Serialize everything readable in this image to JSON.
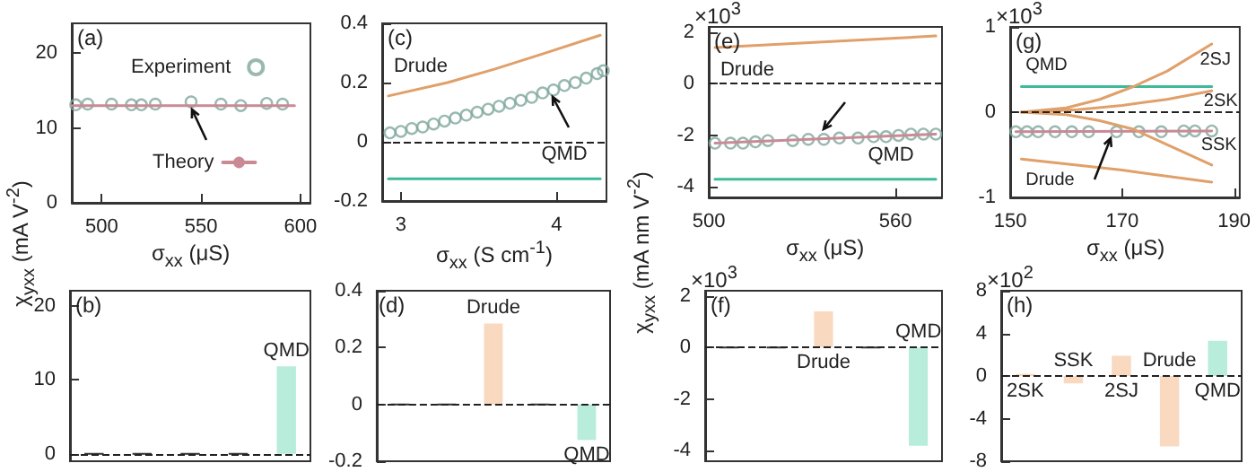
{
  "chart_data": [
    {
      "type": "scatter",
      "ylabel": "χ$_{yxx}$ (mA V$^{-2}$)",
      "xlabel": "σ$_{xx}$ (μS)",
      "annotations": [
        "(a)"
      ],
      "xlim": [
        485,
        605
      ],
      "xticks": [
        500,
        550,
        600
      ],
      "ylim": [
        0,
        24
      ],
      "yticks": [
        0,
        10,
        20
      ],
      "legend": "center",
      "series": [
        {
          "name": "Experiment",
          "type": "scatter",
          "marker": "circle",
          "color": "#7fa89c",
          "x": [
            487,
            493,
            505,
            515,
            520,
            527,
            545,
            560,
            570,
            583,
            591
          ],
          "values": [
            13.1,
            13.2,
            13.2,
            13.1,
            13.1,
            13.2,
            13.5,
            13.2,
            13.0,
            13.3,
            13.2
          ]
        },
        {
          "name": "Theory",
          "type": "line",
          "color": "#c98a96",
          "x": [
            485,
            597
          ],
          "values": [
            13.0,
            13.0
          ]
        }
      ]
    },
    {
      "type": "bar",
      "categories": [
        null,
        null,
        null,
        null,
        "QMD"
      ],
      "values": [
        0,
        0,
        0,
        0,
        11.8
      ],
      "colors": [
        "#333333",
        "#333333",
        "#333333",
        "#333333",
        "#b8ecdb"
      ],
      "annotations": [
        "(b)"
      ],
      "ylim": [
        -1,
        22
      ],
      "yticks": [
        0,
        10,
        20
      ],
      "tick_labels": "y",
      "ref_lines": [
        {
          "axis": "y",
          "value": 0,
          "line_style": "dashed"
        }
      ]
    },
    {
      "type": "scatter",
      "xlabel": "σ$_{xx}$ (S cm$^{-1}$)",
      "annotations": [
        "(c)"
      ],
      "xlim": [
        2.88,
        4.32
      ],
      "xticks": [
        3,
        4
      ],
      "ylim": [
        -0.2,
        0.4
      ],
      "yticks": [
        -0.2,
        0,
        0.2,
        0.4
      ],
      "ref_lines": [
        {
          "axis": "y",
          "value": 0,
          "line_style": "dashed"
        }
      ],
      "series": [
        {
          "type": "scatter",
          "marker": "circle",
          "color": "#7fa89c",
          "x": [
            2.93,
            3.0,
            3.07,
            3.14,
            3.21,
            3.28,
            3.35,
            3.42,
            3.49,
            3.56,
            3.63,
            3.7,
            3.77,
            3.84,
            3.91,
            3.98,
            4.05,
            4.12,
            4.19,
            4.26,
            4.3
          ],
          "values": [
            0.03,
            0.035,
            0.045,
            0.05,
            0.06,
            0.07,
            0.08,
            0.09,
            0.1,
            0.11,
            0.12,
            0.13,
            0.14,
            0.15,
            0.165,
            0.175,
            0.19,
            0.2,
            0.215,
            0.23,
            0.24
          ]
        },
        {
          "name": "Drude",
          "type": "line",
          "color": "#e0a06a",
          "x": [
            2.92,
            3.3,
            3.6,
            3.9,
            4.28
          ],
          "values": [
            0.155,
            0.2,
            0.245,
            0.295,
            0.36
          ]
        },
        {
          "name": "QMD",
          "type": "line",
          "color": "#3fb99a",
          "x": [
            2.92,
            4.28
          ],
          "values": [
            -0.125,
            -0.125
          ]
        }
      ]
    },
    {
      "type": "bar",
      "categories": [
        null,
        null,
        "Drude",
        null,
        "QMD"
      ],
      "values": [
        0,
        0,
        0.285,
        0,
        -0.125
      ],
      "colors": [
        "#333333",
        "#333333",
        "#f9d9bf",
        "#333333",
        "#b8ecdb"
      ],
      "annotations": [
        "(d)"
      ],
      "ylim": [
        -0.2,
        0.4
      ],
      "yticks": [
        -0.2,
        0,
        0.2,
        0.4
      ],
      "tick_labels": "y",
      "ref_lines": [
        {
          "axis": "y",
          "value": 0,
          "line_style": "dashed"
        }
      ]
    },
    {
      "type": "scatter",
      "ylabel": "χ$_{yxx}$ (mA nm V$^{-2}$)",
      "xlabel": "σ$_{xx}$ (μS)",
      "annotations": [
        "(e)",
        "×10$^{3}$"
      ],
      "xlim": [
        500,
        575
      ],
      "xticks": [
        500,
        560
      ],
      "ylim": [
        -4.4,
        2.2
      ],
      "yticks": [
        -4,
        -2,
        0,
        2
      ],
      "ref_lines": [
        {
          "axis": "y",
          "value": 0,
          "line_style": "dashed"
        }
      ],
      "series": [
        {
          "type": "scatter",
          "marker": "circle",
          "color": "#7fa89c",
          "x": [
            502,
            507,
            511,
            515,
            519,
            527,
            532,
            537,
            542,
            548,
            553,
            557,
            561,
            565,
            569,
            573
          ],
          "values": [
            -2.3,
            -2.3,
            -2.3,
            -2.25,
            -2.2,
            -2.2,
            -2.15,
            -2.15,
            -2.1,
            -2.1,
            -2.05,
            -2.05,
            -2.0,
            -1.95,
            -1.95,
            -1.95
          ]
        },
        {
          "type": "line",
          "color": "#c98a96",
          "x": [
            502,
            573
          ],
          "values": [
            -2.3,
            -1.95
          ]
        },
        {
          "name": "Drude",
          "type": "line",
          "color": "#e0a06a",
          "x": [
            502,
            573
          ],
          "values": [
            1.4,
            1.85
          ]
        },
        {
          "name": "QMD",
          "type": "line",
          "color": "#3fb99a",
          "x": [
            502,
            573
          ],
          "values": [
            -3.7,
            -3.7
          ]
        }
      ]
    },
    {
      "type": "bar",
      "categories": [
        null,
        null,
        "Drude",
        null,
        "QMD"
      ],
      "values": [
        0,
        0,
        1.4,
        0,
        -3.8
      ],
      "colors": [
        "#333333",
        "#333333",
        "#f9d9bf",
        "#333333",
        "#b8ecdb"
      ],
      "annotations": [
        "(f)",
        "×10$^{3}$"
      ],
      "ylim": [
        -4.4,
        2.2
      ],
      "yticks": [
        -4,
        -2,
        0,
        2
      ],
      "tick_labels": "y",
      "ref_lines": [
        {
          "axis": "y",
          "value": 0,
          "line_style": "dashed"
        }
      ]
    },
    {
      "type": "scatter",
      "xlabel": "σ$_{xx}$ (μS)",
      "annotations": [
        "(g)",
        "×10$^{3}$"
      ],
      "xlim": [
        150,
        191
      ],
      "xticks": [
        150,
        170,
        190
      ],
      "ylim": [
        -1,
        1
      ],
      "yticks": [
        -1,
        0,
        1
      ],
      "ref_lines": [
        {
          "axis": "y",
          "value": 0,
          "line_style": "dashed"
        }
      ],
      "series": [
        {
          "type": "scatter",
          "marker": "circle",
          "color": "#7fa89c",
          "x": [
            151,
            153,
            155,
            158,
            161,
            164,
            169,
            173,
            177,
            181,
            183,
            186
          ],
          "values": [
            -0.23,
            -0.23,
            -0.23,
            -0.23,
            -0.23,
            -0.23,
            -0.23,
            -0.23,
            -0.23,
            -0.22,
            -0.22,
            -0.22
          ]
        },
        {
          "type": "line",
          "color": "#c98a96",
          "x": [
            151,
            186
          ],
          "values": [
            -0.23,
            -0.22
          ]
        },
        {
          "name": "QMD",
          "type": "line",
          "color": "#3fb99a",
          "x": [
            152,
            186
          ],
          "values": [
            0.3,
            0.3
          ]
        },
        {
          "name": "2SJ",
          "type": "line",
          "color": "#e0a06a",
          "x": [
            152,
            160,
            166,
            172,
            178,
            186
          ],
          "values": [
            0,
            0.05,
            0.15,
            0.3,
            0.48,
            0.8
          ]
        },
        {
          "name": "2SK",
          "type": "line",
          "color": "#e0a06a",
          "x": [
            152,
            162,
            170,
            178,
            186
          ],
          "values": [
            0,
            0.03,
            0.08,
            0.15,
            0.25
          ]
        },
        {
          "name": "SSK",
          "type": "line",
          "color": "#e0a06a",
          "x": [
            152,
            160,
            166,
            172,
            178,
            186
          ],
          "values": [
            0,
            -0.03,
            -0.1,
            -0.2,
            -0.38,
            -0.62
          ]
        },
        {
          "name": "Drude",
          "type": "line",
          "color": "#e0a06a",
          "x": [
            152,
            170,
            186
          ],
          "values": [
            -0.55,
            -0.68,
            -0.82
          ]
        }
      ]
    },
    {
      "type": "bar",
      "categories": [
        "2SK",
        "SSK",
        "2SJ",
        "Drude",
        "QMD"
      ],
      "values": [
        0.2,
        -0.7,
        1.9,
        -6.6,
        3.3
      ],
      "colors": [
        "#f9d9bf",
        "#f9d9bf",
        "#f9d9bf",
        "#f9d9bf",
        "#b8ecdb"
      ],
      "annotations": [
        "(h)",
        "×10$^{2}$"
      ],
      "ylim": [
        -8,
        8
      ],
      "yticks": [
        -8,
        -4,
        0,
        4,
        8
      ],
      "tick_labels": "y",
      "ref_lines": [
        {
          "axis": "y",
          "value": 0,
          "line_style": "dashed"
        }
      ]
    }
  ]
}
